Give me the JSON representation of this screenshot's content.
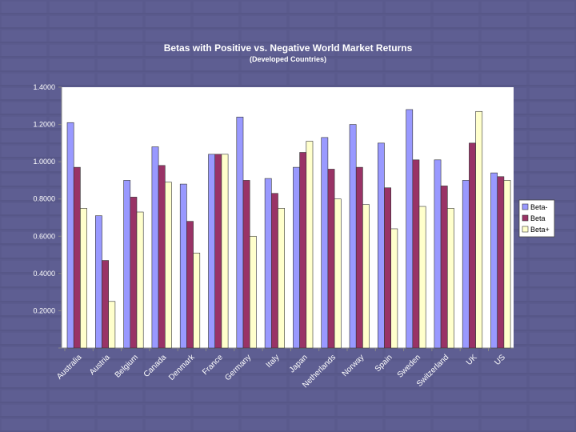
{
  "chart_data": {
    "type": "bar",
    "title": "Betas with Positive vs. Negative World Market Returns",
    "subtitle": "(Developed Countries)",
    "xlabel": "",
    "ylabel": "",
    "ylim": [
      0,
      1.4
    ],
    "yticks": [
      "",
      "0.2000",
      "0.4000",
      "0.6000",
      "0.8000",
      "1.0000",
      "1.2000",
      "1.4000"
    ],
    "categories": [
      "Australia",
      "Austria",
      "Belgium",
      "Canada",
      "Denmark",
      "France",
      "Germany",
      "Italy",
      "Japan",
      "Netherlands",
      "Norway",
      "Spain",
      "Sweden",
      "Switzerland",
      "UK",
      "US"
    ],
    "series": [
      {
        "name": "Beta-",
        "color": "#9999ff",
        "values": [
          1.21,
          0.71,
          0.9,
          1.08,
          0.88,
          1.04,
          1.24,
          0.91,
          0.97,
          1.13,
          1.2,
          1.1,
          1.28,
          1.01,
          0.9,
          0.94
        ]
      },
      {
        "name": "Beta",
        "color": "#993366",
        "values": [
          0.97,
          0.47,
          0.81,
          0.98,
          0.68,
          1.04,
          0.9,
          0.83,
          1.05,
          0.96,
          0.97,
          0.86,
          1.01,
          0.87,
          1.1,
          0.92
        ]
      },
      {
        "name": "Beta+",
        "color": "#ffffcc",
        "values": [
          0.75,
          0.25,
          0.73,
          0.89,
          0.51,
          1.04,
          0.6,
          0.75,
          1.11,
          0.8,
          0.77,
          0.64,
          0.76,
          0.75,
          1.27,
          0.9
        ]
      }
    ],
    "legend": "right"
  }
}
